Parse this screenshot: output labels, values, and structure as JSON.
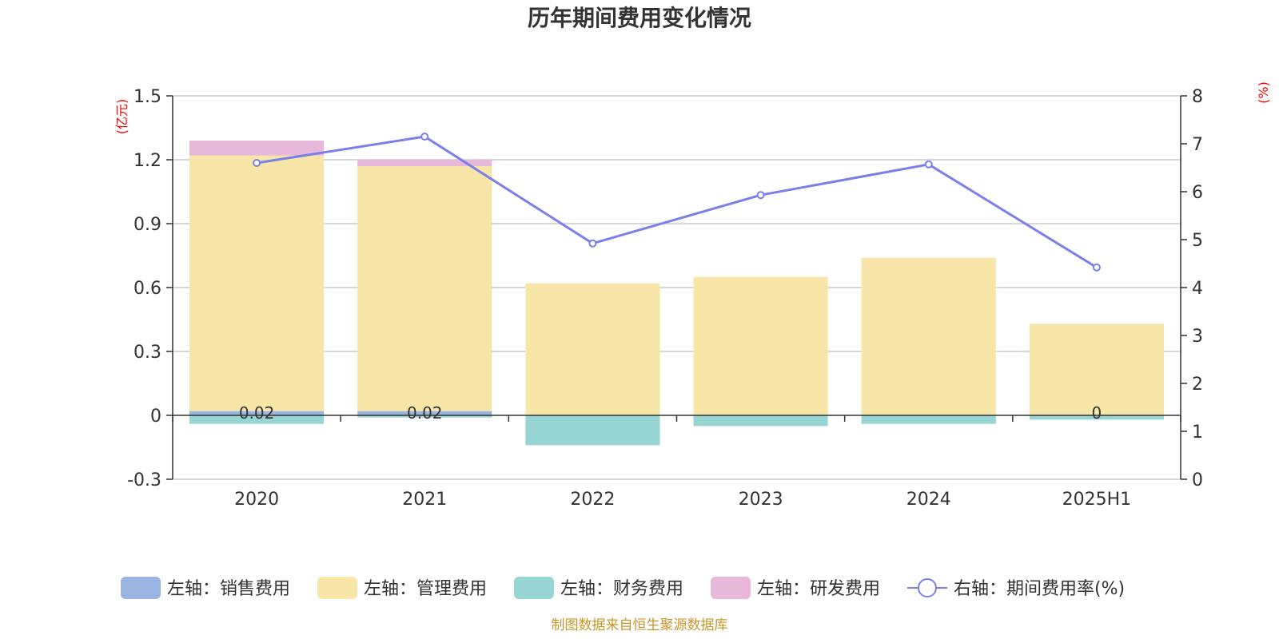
{
  "chart_data": {
    "type": "bar",
    "title": "历年期间费用变化情况",
    "categories": [
      "2020",
      "2021",
      "2022",
      "2023",
      "2024",
      "2025H1"
    ],
    "left_axis": {
      "unit": "(亿元)",
      "ylim": [
        -0.3,
        1.5
      ],
      "ticks": [
        "1.5",
        "1.2",
        "0.9",
        "0.6",
        "0.3",
        "0",
        "-0.3"
      ]
    },
    "right_axis": {
      "unit": "(%)",
      "ylim": [
        0,
        8
      ],
      "ticks": [
        "8",
        "7",
        "6",
        "5",
        "4",
        "3",
        "2",
        "1",
        "0"
      ]
    },
    "series": [
      {
        "name": "左轴：销售费用",
        "axis": "left",
        "kind": "bar",
        "color": "#9bb5e3",
        "values": [
          0.02,
          0.02,
          0,
          0,
          0,
          0
        ]
      },
      {
        "name": "左轴：管理费用",
        "axis": "left",
        "kind": "bar",
        "color": "#f7e6a8",
        "values": [
          1.2,
          1.15,
          0.62,
          0.65,
          0.74,
          0.43
        ]
      },
      {
        "name": "左轴：财务费用",
        "axis": "left",
        "kind": "bar",
        "color": "#97d4d4",
        "values": [
          -0.04,
          -0.01,
          -0.14,
          -0.05,
          -0.04,
          -0.02
        ]
      },
      {
        "name": "左轴：研发费用",
        "axis": "left",
        "kind": "bar",
        "color": "#e7b8d9",
        "values": [
          0.07,
          0.03,
          0,
          0,
          0,
          0
        ]
      },
      {
        "name": "右轴：期间费用率(%)",
        "axis": "right",
        "kind": "line",
        "color": "#7b7fe8",
        "values": [
          6.6,
          7.15,
          4.92,
          5.93,
          6.57,
          4.42
        ]
      }
    ],
    "data_labels": [
      {
        "category": "2020",
        "text": "0.02"
      },
      {
        "category": "2021",
        "text": "0.02"
      },
      {
        "category": "2025H1",
        "text": "0"
      }
    ]
  },
  "footer": {
    "source": "制图数据来自恒生聚源数据库"
  }
}
